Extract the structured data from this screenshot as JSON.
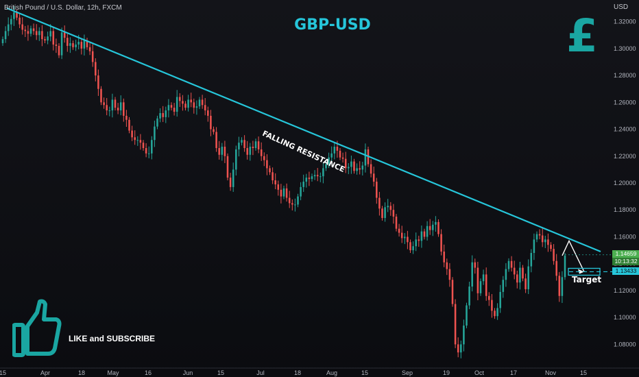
{
  "header": {
    "symbol": "British Pound / U.S. Dollar, 12h, FXCM",
    "currency": "USD"
  },
  "title": "GBP-USD",
  "currency_symbol": "£",
  "annotations": {
    "resistance_label": "FALLING RESISTANCE",
    "target_label": "Target"
  },
  "cta": "LIKE and SUBSCRIBE",
  "price_tags": {
    "current": "1.14659",
    "countdown": "10:13:32",
    "target": "1.13433"
  },
  "colors": {
    "up": "#26a69a",
    "down": "#ef5350",
    "trendline": "#26c6da",
    "brand": "#1aa6a2"
  },
  "chart_data": {
    "type": "candlestick",
    "title": "GBP-USD",
    "ylabel": "USD",
    "ylim": [
      1.07,
      1.33
    ],
    "y_ticks": [
      "1.32000",
      "1.30000",
      "1.28000",
      "1.26000",
      "1.24000",
      "1.22000",
      "1.20000",
      "1.18000",
      "1.16000",
      "1.14000",
      "1.12000",
      "1.10000",
      "1.08000"
    ],
    "x_ticks": [
      "15",
      "Apr",
      "18",
      "May",
      "16",
      "Jun",
      "15",
      "Jul",
      "18",
      "Aug",
      "15",
      "Sep",
      "19",
      "Oct",
      "17",
      "Nov",
      "15"
    ],
    "series": [
      {
        "values": [
          1.307,
          1.313,
          1.318,
          1.322,
          1.327,
          1.323,
          1.318,
          1.314,
          1.313,
          1.311,
          1.315,
          1.313,
          1.31,
          1.313,
          1.307,
          1.306,
          1.309,
          1.313,
          1.303,
          1.302,
          1.295,
          1.312,
          1.308,
          1.302,
          1.304,
          1.301,
          1.303,
          1.305,
          1.3,
          1.306,
          1.301,
          1.298,
          1.29,
          1.28,
          1.27,
          1.26,
          1.258,
          1.254,
          1.254,
          1.262,
          1.256,
          1.254,
          1.26,
          1.25,
          1.247,
          1.239,
          1.234,
          1.232,
          1.232,
          1.23,
          1.226,
          1.222,
          1.222,
          1.232,
          1.242,
          1.248,
          1.252,
          1.249,
          1.254,
          1.258,
          1.256,
          1.253,
          1.264,
          1.261,
          1.259,
          1.256,
          1.262,
          1.26,
          1.256,
          1.257,
          1.262,
          1.258,
          1.254,
          1.25,
          1.24,
          1.238,
          1.226,
          1.221,
          1.227,
          1.22,
          1.204,
          1.197,
          1.21,
          1.225,
          1.23,
          1.232,
          1.226,
          1.221,
          1.227,
          1.226,
          1.231,
          1.225,
          1.22,
          1.217,
          1.211,
          1.208,
          1.202,
          1.199,
          1.195,
          1.19,
          1.196,
          1.189,
          1.185,
          1.184,
          1.184,
          1.19,
          1.197,
          1.201,
          1.204,
          1.203,
          1.205,
          1.206,
          1.205,
          1.205,
          1.211,
          1.214,
          1.219,
          1.222,
          1.227,
          1.224,
          1.219,
          1.218,
          1.211,
          1.212,
          1.216,
          1.209,
          1.211,
          1.21,
          1.213,
          1.225,
          1.214,
          1.207,
          1.201,
          1.189,
          1.181,
          1.174,
          1.182,
          1.183,
          1.18,
          1.175,
          1.166,
          1.163,
          1.159,
          1.16,
          1.156,
          1.15,
          1.153,
          1.158,
          1.157,
          1.164,
          1.16,
          1.168,
          1.165,
          1.169,
          1.171,
          1.162,
          1.149,
          1.141,
          1.136,
          1.128,
          1.11,
          1.08,
          1.074,
          1.08,
          1.094,
          1.109,
          1.123,
          1.141,
          1.137,
          1.118,
          1.127,
          1.132,
          1.116,
          1.113,
          1.105,
          1.101,
          1.107,
          1.119,
          1.128,
          1.136,
          1.142,
          1.137,
          1.132,
          1.126,
          1.137,
          1.129,
          1.121,
          1.138,
          1.148,
          1.158,
          1.162,
          1.161,
          1.156,
          1.158,
          1.154,
          1.151,
          1.142,
          1.131,
          1.116,
          1.13,
          1.146
        ]
      }
    ],
    "trendline": {
      "label": "FALLING RESISTANCE",
      "start": 1.327,
      "end": 1.146
    },
    "projection": {
      "from": 1.146,
      "peak": 1.157,
      "target": 1.134
    }
  }
}
